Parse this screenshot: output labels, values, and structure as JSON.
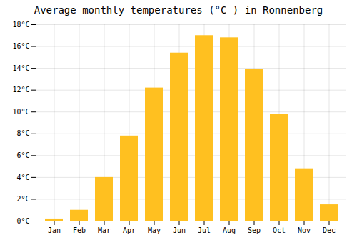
{
  "chart_data": {
    "type": "bar",
    "title": "Average monthly temperatures (°C ) in Ronnenberg",
    "categories": [
      "Jan",
      "Feb",
      "Mar",
      "Apr",
      "May",
      "Jun",
      "Jul",
      "Aug",
      "Sep",
      "Oct",
      "Nov",
      "Dec"
    ],
    "values": [
      0.2,
      1.0,
      4.0,
      7.8,
      12.2,
      15.4,
      17.0,
      16.8,
      13.9,
      9.8,
      4.8,
      1.5
    ],
    "color": "#FFC020",
    "ylim": [
      0,
      18
    ],
    "yticks": [
      {
        "value": 0,
        "label": "0°C"
      },
      {
        "value": 2,
        "label": "2°C"
      },
      {
        "value": 4,
        "label": "4°C"
      },
      {
        "value": 6,
        "label": "6°C"
      },
      {
        "value": 8,
        "label": "8°C"
      },
      {
        "value": 10,
        "label": "10°C"
      },
      {
        "value": 12,
        "label": "12°C"
      },
      {
        "value": 14,
        "label": "14°C"
      },
      {
        "value": 16,
        "label": "16°C"
      },
      {
        "value": 18,
        "label": "18°C"
      }
    ],
    "grid": true
  }
}
